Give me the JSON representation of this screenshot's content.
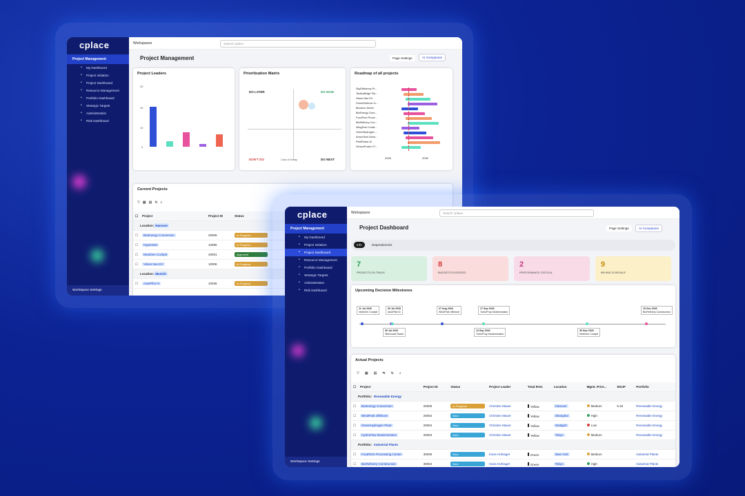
{
  "brand": "cplace",
  "workspaces": "Workspaces",
  "search_placeholder": "Search cplace",
  "page_settings": "Page Settings",
  "ai_companion": "AI Companion",
  "workspace_settings": "Workspace Settings",
  "back": {
    "nav_header": "Project Management",
    "nav_items": [
      "My Dashboard",
      "Project Initiation",
      "Project Dashboard",
      "Resource Management",
      "Portfolio Dashboard",
      "Strategic Targets",
      "Administration",
      "Risk Dashboard"
    ],
    "page_title": "Project Management",
    "leaders": {
      "title": "Project Leaders",
      "yaxis": [
        "30",
        "20",
        "10",
        "0"
      ]
    },
    "matrix": {
      "title": "Prioritization Matrix",
      "q_tl": "DO LATER",
      "q_tr": "DO NOW",
      "q_bl": "DON'T DO",
      "q_br": "DO NEXT",
      "xlabel": "Cost of Delay",
      "ylabel": "Job Duration"
    },
    "roadmap": {
      "title": "Roadmap of all projects",
      "rows": [
        "SkyEfficiency Pr...",
        "TacticalEdge Pla...",
        "Vision Neo EV",
        "DroneDefence In...",
        "Biocleen Surfer",
        "BioEnergy Conv...",
        "FoodTech Proce...",
        "BioRefinery Con...",
        "WingTech Cockt...",
        "GreenHydrogen ...",
        "ArmorTech Deve...",
        "PathFinder AI",
        "SensorFusion Fl..."
      ],
      "xticks": [
        "2026",
        "2030"
      ]
    },
    "current": {
      "title": "Current Projects",
      "cols": [
        "Project",
        "Project ID",
        "Status"
      ],
      "group1": "Location:",
      "group1_val": "Hanover",
      "rows": [
        [
          "BioEnergy Conversion",
          "20005",
          "In Progress"
        ],
        [
          "HyperStar",
          "10085",
          "In Progress"
        ],
        [
          "NextGen Cockpit",
          "40001",
          "Approved"
        ],
        [
          "Vision Neo EV",
          "10006",
          "In Progress"
        ]
      ],
      "group2": "Location:",
      "group2_val": "Munich",
      "rows2": [
        [
          "AutoPilot AI",
          "10036",
          "In Progress"
        ]
      ]
    }
  },
  "front": {
    "nav_header": "Project Management",
    "nav_items": [
      "My Dashboard",
      "Project Initiation",
      "Project Dashboard",
      "Resource Management",
      "Portfolio Dashboard",
      "Strategic Targets",
      "Administration",
      "Risk Dashboard"
    ],
    "page_title": "Project Dashboard",
    "tabs": [
      "Info",
      "Dependencies"
    ],
    "kpis": [
      {
        "num": "7",
        "label": "PROJECTS ON TRACK",
        "color": "#2e9e5e",
        "bg": "#d7f0df"
      },
      {
        "num": "8",
        "label": "BUDGETS EXCEEDED",
        "color": "#d23b3b",
        "bg": "#fbdcdc"
      },
      {
        "num": "2",
        "label": "PERFORMANCE CRITICAL",
        "color": "#c03c7a",
        "bg": "#f9dbe8"
      },
      {
        "num": "9",
        "label": "BEHIND SCHEDULE",
        "color": "#c58b12",
        "bg": "#fbf0c8"
      }
    ],
    "milestones_title": "Upcoming Decision Milestones",
    "milestones_top": [
      [
        "11 Jul 2026",
        "NextGen Cockpit"
      ],
      [
        "30 Jul 2026",
        "AutoPilot AI"
      ],
      [
        "27 Aug 2026",
        "WindPark Offshore"
      ],
      [
        "17 Sep 2026",
        "TurboProp Modernization"
      ],
      [
        "16 Dec 2026",
        "BioRefinery Construction"
      ]
    ],
    "milestones_bot": [
      [
        "30 Jul 2026",
        "SiteGuard Radar"
      ],
      [
        "14 Sep 2026",
        "TurboProp Modernization"
      ],
      [
        "30 Nov 2026",
        "NextGen Cockpit"
      ]
    ],
    "actual_title": "Actual Projects",
    "cols": [
      "Project",
      "Project ID",
      "Status",
      "Project Leader",
      "Total RAG",
      "Location",
      "Mgmt. Prior...",
      "WSJF",
      "Portfolio"
    ],
    "group1": "Portfolio:",
    "group1_val": "Renewable Energy",
    "rows": [
      [
        "BioEnergy Conversion",
        "20005",
        "In Progress",
        "Christine Mauer",
        "Yellow",
        "Hanover",
        "Medium",
        "5.33",
        "Renewable Energy"
      ],
      [
        "WindPark Offshore",
        "20002",
        "New",
        "Christine Mauer",
        "Yellow",
        "Shanghai",
        "High",
        "",
        "Renewable Energy"
      ],
      [
        "GreenHydrogen Plant",
        "20004",
        "New",
        "Christine Mauer",
        "Yellow",
        "Stuttgart",
        "Low",
        "",
        "Renewable Energy"
      ],
      [
        "HydroFlow Modernization",
        "20003",
        "New",
        "Christine Mauer",
        "Yellow",
        "Tokyo",
        "Medium",
        "",
        "Renewable Energy"
      ]
    ],
    "group2": "Portfolio:",
    "group2_val": "Industrial Plants",
    "rows2": [
      [
        "FoodTech Processing Center",
        "30005",
        "New",
        "Kiara Hufnagel",
        "Green",
        "New York",
        "Medium",
        "",
        "Industrial Plants"
      ],
      [
        "BioRefinery Construction",
        "30002",
        "New",
        "Kiara Hufnagel",
        "Green",
        "Tokyo",
        "High",
        "",
        "Industrial Plants"
      ]
    ]
  },
  "colors": {
    "accent": "#2241c8",
    "in_progress": "#d9a038",
    "new": "#3aa6d8",
    "approved": "#2f7d3a"
  }
}
